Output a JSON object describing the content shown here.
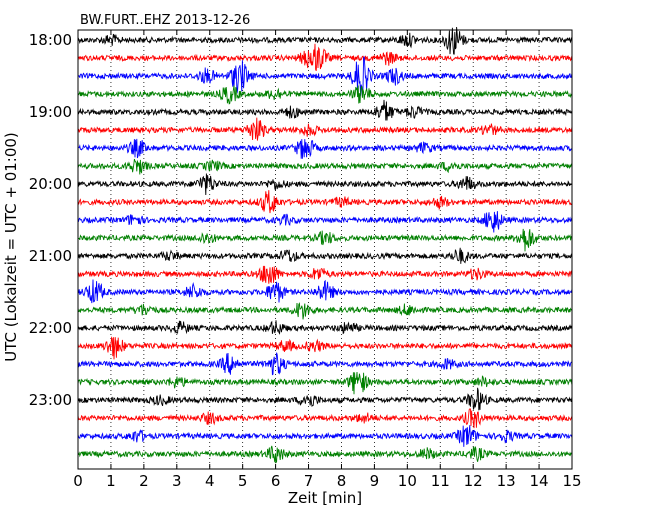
{
  "chart_data": {
    "type": "line",
    "title": "BW.FURT..EHZ 2013-12-26",
    "xlabel": "Zeit  [min]",
    "ylabel": "UTC (Lokalzeit = UTC + 01:00)",
    "xlim": [
      0,
      15
    ],
    "x_ticks": [
      "0",
      "1",
      "2",
      "3",
      "4",
      "5",
      "6",
      "7",
      "8",
      "9",
      "10",
      "11",
      "12",
      "13",
      "14",
      "15"
    ],
    "y_ticks": [
      "18:00",
      "19:00",
      "20:00",
      "21:00",
      "22:00",
      "23:00"
    ],
    "trace_start_minutes": 1080,
    "trace_interval_minutes": 15,
    "trace_colors": [
      "#000000",
      "#ff0000",
      "#0000ff",
      "#008000"
    ],
    "grid": "vertical dotted at each minute",
    "traces": [
      {
        "bursts": [
          [
            11.4,
            3.2
          ],
          [
            10.0,
            1.2
          ],
          [
            1.0,
            0.9
          ]
        ]
      },
      {
        "bursts": [
          [
            7.3,
            2.4
          ],
          [
            7.0,
            1.5
          ],
          [
            9.4,
            1.2
          ]
        ]
      },
      {
        "bursts": [
          [
            4.9,
            3.6
          ],
          [
            8.6,
            4.3
          ],
          [
            9.6,
            1.6
          ],
          [
            3.9,
            1.4
          ]
        ]
      },
      {
        "bursts": [
          [
            4.6,
            1.8
          ],
          [
            8.6,
            1.8
          ],
          [
            6.0,
            1.0
          ]
        ]
      },
      {
        "bursts": [
          [
            9.3,
            2.2
          ],
          [
            10.2,
            1.1
          ],
          [
            6.5,
            1.0
          ]
        ]
      },
      {
        "bursts": [
          [
            5.4,
            2.4
          ],
          [
            7.0,
            1.0
          ],
          [
            12.5,
            1.0
          ]
        ]
      },
      {
        "bursts": [
          [
            1.8,
            1.7
          ],
          [
            6.9,
            2.4
          ],
          [
            10.5,
            0.9
          ]
        ]
      },
      {
        "bursts": [
          [
            1.8,
            1.5
          ],
          [
            4.1,
            0.9
          ],
          [
            11.3,
            0.9
          ]
        ]
      },
      {
        "bursts": [
          [
            3.9,
            2.0
          ],
          [
            11.8,
            1.4
          ],
          [
            6.0,
            0.9
          ]
        ]
      },
      {
        "bursts": [
          [
            5.8,
            2.4
          ],
          [
            11.0,
            1.0
          ],
          [
            8.0,
            0.8
          ]
        ]
      },
      {
        "bursts": [
          [
            12.6,
            2.6
          ],
          [
            1.7,
            1.0
          ],
          [
            6.3,
            0.8
          ]
        ]
      },
      {
        "bursts": [
          [
            7.5,
            1.2
          ],
          [
            13.6,
            2.6
          ],
          [
            3.9,
            1.0
          ]
        ]
      },
      {
        "bursts": [
          [
            6.4,
            1.2
          ],
          [
            11.6,
            1.4
          ],
          [
            2.8,
            0.8
          ]
        ]
      },
      {
        "bursts": [
          [
            5.8,
            2.6
          ],
          [
            7.3,
            1.2
          ],
          [
            12.1,
            1.0
          ]
        ]
      },
      {
        "bursts": [
          [
            0.5,
            2.4
          ],
          [
            3.5,
            1.4
          ],
          [
            6.0,
            2.2
          ],
          [
            7.5,
            2.0
          ]
        ]
      },
      {
        "bursts": [
          [
            6.8,
            1.7
          ],
          [
            2.0,
            1.0
          ],
          [
            10.0,
            1.0
          ]
        ]
      },
      {
        "bursts": [
          [
            3.1,
            1.1
          ],
          [
            6.0,
            1.2
          ],
          [
            8.2,
            1.0
          ]
        ]
      },
      {
        "bursts": [
          [
            1.1,
            2.4
          ],
          [
            6.3,
            1.0
          ],
          [
            7.2,
            1.0
          ]
        ]
      },
      {
        "bursts": [
          [
            4.6,
            2.0
          ],
          [
            6.0,
            2.2
          ],
          [
            11.2,
            0.9
          ]
        ]
      },
      {
        "bursts": [
          [
            8.5,
            2.8
          ],
          [
            3.0,
            1.0
          ],
          [
            12.3,
            0.8
          ]
        ]
      },
      {
        "bursts": [
          [
            7.0,
            1.4
          ],
          [
            12.1,
            2.3
          ],
          [
            2.5,
            0.8
          ]
        ]
      },
      {
        "bursts": [
          [
            12.0,
            1.9
          ],
          [
            4.0,
            1.0
          ],
          [
            8.7,
            0.8
          ]
        ]
      },
      {
        "bursts": [
          [
            11.8,
            2.3
          ],
          [
            1.8,
            1.1
          ],
          [
            13.0,
            1.0
          ]
        ]
      },
      {
        "bursts": [
          [
            6.0,
            1.7
          ],
          [
            10.6,
            1.0
          ],
          [
            12.1,
            1.2
          ]
        ]
      }
    ]
  }
}
